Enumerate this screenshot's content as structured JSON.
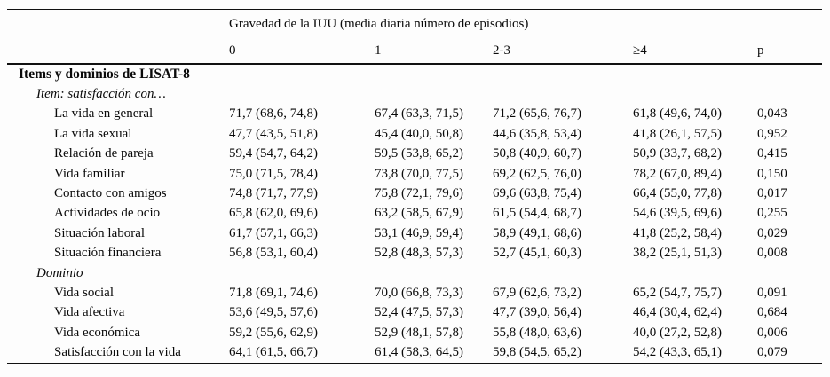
{
  "table": {
    "spanning_header": "Gravedad de la IUU (media diaria número de episodios)",
    "columns": [
      "0",
      "1",
      "2-3",
      "≥4",
      "p"
    ],
    "rows": [
      {
        "type": "section",
        "label": "Items y dominios de LISAT-8",
        "values": [
          "",
          "",
          "",
          "",
          ""
        ]
      },
      {
        "type": "subsection",
        "label": "Item: satisfacción con…",
        "values": [
          "",
          "",
          "",
          "",
          ""
        ]
      },
      {
        "type": "data",
        "label": "La vida en general",
        "values": [
          "71,7 (68,6, 74,8)",
          "67,4 (63,3, 71,5)",
          "71,2 (65,6, 76,7)",
          "61,8 (49,6, 74,0)",
          "0,043"
        ]
      },
      {
        "type": "data",
        "label": "La vida sexual",
        "values": [
          "47,7 (43,5, 51,8)",
          "45,4 (40,0, 50,8)",
          "44,6 (35,8, 53,4)",
          "41,8 (26,1, 57,5)",
          "0,952"
        ]
      },
      {
        "type": "data",
        "label": "Relación de pareja",
        "values": [
          "59,4 (54,7, 64,2)",
          "59,5 (53,8, 65,2)",
          "50,8 (40,9, 60,7)",
          "50,9 (33,7, 68,2)",
          "0,415"
        ]
      },
      {
        "type": "data",
        "label": "Vida familiar",
        "values": [
          "75,0 (71,5, 78,4)",
          "73,8 (70,0, 77,5)",
          "69,2 (62,5, 76,0)",
          "78,2 (67,0, 89,4)",
          "0,150"
        ]
      },
      {
        "type": "data",
        "label": "Contacto con amigos",
        "values": [
          "74,8 (71,7, 77,9)",
          "75,8 (72,1, 79,6)",
          "69,6 (63,8, 75,4)",
          "66,4 (55,0, 77,8)",
          "0,017"
        ]
      },
      {
        "type": "data",
        "label": "Actividades de ocio",
        "values": [
          "65,8 (62,0, 69,6)",
          "63,2 (58,5, 67,9)",
          "61,5 (54,4, 68,7)",
          "54,6 (39,5, 69,6)",
          "0,255"
        ]
      },
      {
        "type": "data",
        "label": "Situación laboral",
        "values": [
          "61,7 (57,1, 66,3)",
          "53,1 (46,9, 59,4)",
          "58,9 (49,1, 68,6)",
          "41,8 (25,2, 58,4)",
          "0,029"
        ]
      },
      {
        "type": "data",
        "label": "Situación financiera",
        "values": [
          "56,8 (53,1, 60,4)",
          "52,8 (48,3, 57,3)",
          "52,7 (45,1, 60,3)",
          "38,2 (25,1, 51,3)",
          "0,008"
        ]
      },
      {
        "type": "subsection",
        "label": "Dominio",
        "values": [
          "",
          "",
          "",
          "",
          ""
        ]
      },
      {
        "type": "data",
        "label": "Vida social",
        "values": [
          "71,8 (69,1, 74,6)",
          "70,0 (66,8, 73,3)",
          "67,9 (62,6, 73,2)",
          "65,2 (54,7, 75,7)",
          "0,091"
        ]
      },
      {
        "type": "data",
        "label": "Vida afectiva",
        "values": [
          "53,6 (49,5, 57,6)",
          "52,4 (47,5, 57,3)",
          "47,7 (39,0, 56,4)",
          "46,4 (30,4, 62,4)",
          "0,684"
        ]
      },
      {
        "type": "data",
        "label": "Vida económica",
        "values": [
          "59,2 (55,6, 62,9)",
          "52,9 (48,1, 57,8)",
          "55,8 (48,0, 63,6)",
          "40,0 (27,2, 52,8)",
          "0,006"
        ]
      },
      {
        "type": "data",
        "label": "Satisfacción con la vida",
        "values": [
          "64,1 (61,5, 66,7)",
          "61,4 (58,3, 64,5)",
          "59,8 (54,5, 65,2)",
          "54,2 (43,3, 65,1)",
          "0,079"
        ]
      }
    ]
  }
}
